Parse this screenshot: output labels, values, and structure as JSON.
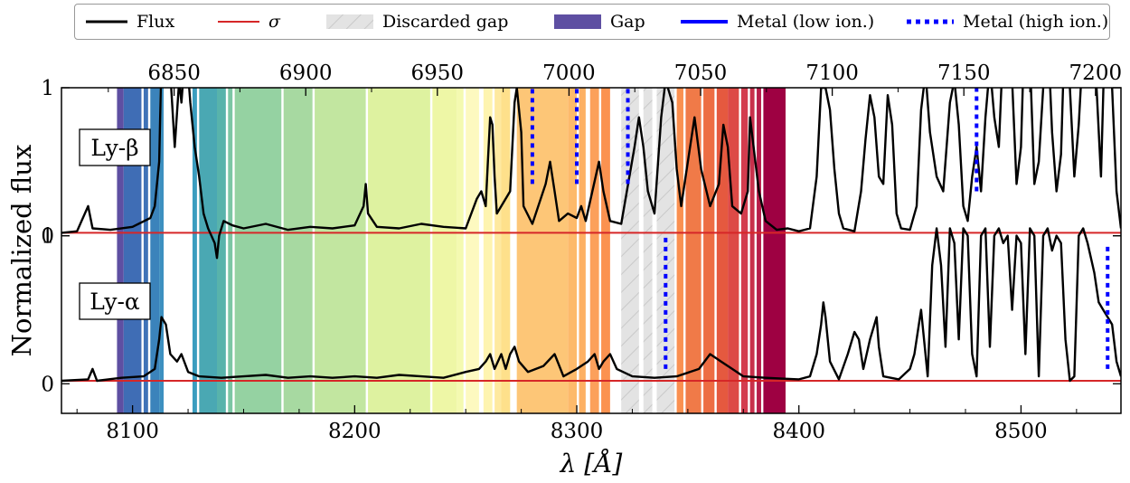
{
  "chart_data": {
    "type": "line",
    "xlabel": "λ [Å]",
    "ylabel": "Normalized flux",
    "xlim": [
      8068,
      8545
    ],
    "bottom_axis_ticks": [
      8100,
      8200,
      8300,
      8400,
      8500
    ],
    "top_axis_ticks": [
      6850,
      6900,
      6950,
      7000,
      7050,
      7100,
      7150,
      7200
    ],
    "top_axis_scale": 0.84373,
    "ylim": [
      -0.2,
      2.0
    ],
    "yticks": [
      0,
      1
    ],
    "panels": [
      {
        "label": "Ly-β",
        "offset": 1.0
      },
      {
        "label": "Ly-α",
        "offset": 0.0
      }
    ],
    "legend": {
      "placement": "top",
      "entries": [
        {
          "label": "Flux",
          "color": "#000000",
          "style": "solid"
        },
        {
          "label": "σ",
          "color": "#d62728",
          "style": "solid"
        },
        {
          "label": "Discarded gap",
          "color": "#d9d9d9",
          "style": "hatched"
        },
        {
          "label": "Gap",
          "color": "#5e4fa2",
          "style": "patch"
        },
        {
          "label": "Metal (low ion.)",
          "color": "#0000ff",
          "style": "solid"
        },
        {
          "label": "Metal (high ion.)",
          "color": "#0000ff",
          "style": "dotted"
        }
      ]
    },
    "gaps": [
      {
        "x0": 8093,
        "x1": 8096,
        "color": "#5e4fa2"
      },
      {
        "x0": 8096,
        "x1": 8104,
        "color": "#3f6db5"
      },
      {
        "x0": 8105,
        "x1": 8107,
        "color": "#3f73b8"
      },
      {
        "x0": 8108,
        "x1": 8112,
        "color": "#3b83bb"
      },
      {
        "x0": 8112,
        "x1": 8114,
        "color": "#3d90c0"
      },
      {
        "x0": 8127,
        "x1": 8129,
        "color": "#3b9dbf"
      },
      {
        "x0": 8130,
        "x1": 8138,
        "color": "#4aa8b3"
      },
      {
        "x0": 8138,
        "x1": 8142,
        "color": "#58b3ab"
      },
      {
        "x0": 8143,
        "x1": 8145,
        "color": "#7cc6a4"
      },
      {
        "x0": 8146,
        "x1": 8167,
        "color": "#95d2a2"
      },
      {
        "x0": 8168,
        "x1": 8181,
        "color": "#a7d9a1"
      },
      {
        "x0": 8182,
        "x1": 8205,
        "color": "#c2e6a0"
      },
      {
        "x0": 8206,
        "x1": 8234,
        "color": "#def2a0"
      },
      {
        "x0": 8235,
        "x1": 8246,
        "color": "#eef7a6"
      },
      {
        "x0": 8246,
        "x1": 8249,
        "color": "#f4fab0"
      },
      {
        "x0": 8250,
        "x1": 8256,
        "color": "#fdf9c0"
      },
      {
        "x0": 8258,
        "x1": 8262,
        "color": "#fef4b0"
      },
      {
        "x0": 8263,
        "x1": 8266,
        "color": "#fee9a0"
      },
      {
        "x0": 8266,
        "x1": 8270,
        "color": "#fee08b"
      },
      {
        "x0": 8273,
        "x1": 8296,
        "color": "#fdc677"
      },
      {
        "x0": 8296,
        "x1": 8300,
        "color": "#fdba6b"
      },
      {
        "x0": 8301,
        "x1": 8304,
        "color": "#fdb063"
      },
      {
        "x0": 8306,
        "x1": 8310,
        "color": "#fca05b"
      },
      {
        "x0": 8311,
        "x1": 8315,
        "color": "#fb9250"
      },
      {
        "x0": 8345,
        "x1": 8348,
        "color": "#fa9050"
      },
      {
        "x0": 8349,
        "x1": 8356,
        "color": "#f07a48"
      },
      {
        "x0": 8357,
        "x1": 8362,
        "color": "#ed6d43"
      },
      {
        "x0": 8363,
        "x1": 8368,
        "color": "#e5593f"
      },
      {
        "x0": 8368,
        "x1": 8373,
        "color": "#dd4a46"
      },
      {
        "x0": 8374,
        "x1": 8377,
        "color": "#d33c4e"
      },
      {
        "x0": 8378,
        "x1": 8380,
        "color": "#c8304b"
      },
      {
        "x0": 8381,
        "x1": 8383,
        "color": "#b81d4a"
      },
      {
        "x0": 8384,
        "x1": 8394,
        "color": "#9e0142"
      }
    ],
    "discarded_gaps": [
      {
        "x0": 8320,
        "x1": 8328
      },
      {
        "x0": 8330,
        "x1": 8334
      },
      {
        "x0": 8336,
        "x1": 8344
      }
    ],
    "metals_high_ion": [
      {
        "panel": "Ly-β",
        "x": 8280,
        "y0": 0.35,
        "y1": 1.1
      },
      {
        "panel": "Ly-β",
        "x": 8300,
        "y0": 0.35,
        "y1": 1.1
      },
      {
        "panel": "Ly-β",
        "x": 8323,
        "y0": 0.35,
        "y1": 1.1
      },
      {
        "panel": "Ly-β",
        "x": 8480,
        "y0": 0.3,
        "y1": 1.1
      },
      {
        "panel": "Ly-α",
        "x": 8340,
        "y0": 0.1,
        "y1": 1.0
      },
      {
        "panel": "Ly-α",
        "x": 8539,
        "y0": 0.1,
        "y1": 0.95
      }
    ],
    "flux_lyb": [
      [
        8068,
        0.02
      ],
      [
        8075,
        0.03
      ],
      [
        8080,
        0.2
      ],
      [
        8082,
        0.05
      ],
      [
        8090,
        0.04
      ],
      [
        8100,
        0.06
      ],
      [
        8108,
        0.12
      ],
      [
        8110,
        0.2
      ],
      [
        8112,
        0.5
      ],
      [
        8113,
        1.2
      ],
      [
        8115,
        1.35
      ],
      [
        8117,
        1.1
      ],
      [
        8119,
        0.6
      ],
      [
        8121,
        1.05
      ],
      [
        8122,
        0.9
      ],
      [
        8124,
        1.3
      ],
      [
        8126,
        0.9
      ],
      [
        8128,
        0.6
      ],
      [
        8130,
        0.4
      ],
      [
        8132,
        0.15
      ],
      [
        8134,
        0.05
      ],
      [
        8137,
        -0.05
      ],
      [
        8138,
        -0.15
      ],
      [
        8139,
        0.0
      ],
      [
        8141,
        0.1
      ],
      [
        8145,
        0.07
      ],
      [
        8150,
        0.05
      ],
      [
        8160,
        0.08
      ],
      [
        8170,
        0.04
      ],
      [
        8180,
        0.06
      ],
      [
        8190,
        0.05
      ],
      [
        8200,
        0.07
      ],
      [
        8204,
        0.2
      ],
      [
        8205,
        0.35
      ],
      [
        8206,
        0.15
      ],
      [
        8210,
        0.06
      ],
      [
        8220,
        0.05
      ],
      [
        8230,
        0.08
      ],
      [
        8240,
        0.06
      ],
      [
        8250,
        0.05
      ],
      [
        8255,
        0.25
      ],
      [
        8257,
        0.3
      ],
      [
        8259,
        0.2
      ],
      [
        8260,
        0.5
      ],
      [
        8261,
        0.8
      ],
      [
        8262,
        0.75
      ],
      [
        8263,
        0.4
      ],
      [
        8264,
        0.15
      ],
      [
        8270,
        0.3
      ],
      [
        8272,
        0.9
      ],
      [
        8273,
        1.0
      ],
      [
        8275,
        0.7
      ],
      [
        8276,
        0.2
      ],
      [
        8280,
        0.08
      ],
      [
        8286,
        0.35
      ],
      [
        8288,
        0.5
      ],
      [
        8290,
        0.3
      ],
      [
        8292,
        0.1
      ],
      [
        8296,
        0.15
      ],
      [
        8300,
        0.12
      ],
      [
        8302,
        0.2
      ],
      [
        8304,
        0.1
      ],
      [
        8310,
        0.5
      ],
      [
        8312,
        0.3
      ],
      [
        8315,
        0.1
      ],
      [
        8320,
        0.08
      ],
      [
        8326,
        0.6
      ],
      [
        8328,
        0.8
      ],
      [
        8330,
        0.6
      ],
      [
        8332,
        0.3
      ],
      [
        8335,
        0.15
      ],
      [
        8338,
        0.8
      ],
      [
        8340,
        1.05
      ],
      [
        8343,
        0.9
      ],
      [
        8345,
        0.45
      ],
      [
        8347,
        0.2
      ],
      [
        8350,
        0.5
      ],
      [
        8353,
        0.8
      ],
      [
        8356,
        0.45
      ],
      [
        8360,
        0.2
      ],
      [
        8364,
        0.35
      ],
      [
        8366,
        0.75
      ],
      [
        8368,
        0.6
      ],
      [
        8370,
        0.2
      ],
      [
        8374,
        0.15
      ],
      [
        8377,
        0.3
      ],
      [
        8378,
        0.8
      ],
      [
        8380,
        0.55
      ],
      [
        8382,
        0.3
      ],
      [
        8385,
        0.1
      ],
      [
        8390,
        0.04
      ],
      [
        8395,
        0.05
      ],
      [
        8400,
        0.03
      ],
      [
        8405,
        0.05
      ],
      [
        8408,
        0.4
      ],
      [
        8410,
        1.0
      ],
      [
        8412,
        1.0
      ],
      [
        8414,
        0.85
      ],
      [
        8416,
        0.45
      ],
      [
        8418,
        0.15
      ],
      [
        8420,
        0.05
      ],
      [
        8425,
        0.03
      ],
      [
        8428,
        0.3
      ],
      [
        8430,
        0.65
      ],
      [
        8432,
        0.95
      ],
      [
        8434,
        0.8
      ],
      [
        8436,
        0.4
      ],
      [
        8438,
        0.35
      ],
      [
        8440,
        0.95
      ],
      [
        8442,
        0.75
      ],
      [
        8444,
        0.15
      ],
      [
        8446,
        0.05
      ],
      [
        8450,
        0.04
      ],
      [
        8453,
        0.2
      ],
      [
        8455,
        0.85
      ],
      [
        8457,
        1.1
      ],
      [
        8459,
        0.7
      ],
      [
        8462,
        0.4
      ],
      [
        8465,
        0.3
      ],
      [
        8468,
        0.9
      ],
      [
        8470,
        1.05
      ],
      [
        8472,
        0.75
      ],
      [
        8474,
        0.2
      ],
      [
        8476,
        0.1
      ],
      [
        8478,
        0.4
      ],
      [
        8480,
        0.6
      ],
      [
        8482,
        0.3
      ],
      [
        8484,
        0.8
      ],
      [
        8486,
        1.15
      ],
      [
        8488,
        0.8
      ],
      [
        8490,
        0.6
      ],
      [
        8492,
        1.3
      ],
      [
        8494,
        1.5
      ],
      [
        8496,
        1.05
      ],
      [
        8498,
        0.35
      ],
      [
        8500,
        0.6
      ],
      [
        8502,
        1.6
      ],
      [
        8504,
        1.2
      ],
      [
        8506,
        0.35
      ],
      [
        8508,
        0.5
      ],
      [
        8510,
        1.0
      ],
      [
        8512,
        1.4
      ],
      [
        8514,
        0.7
      ],
      [
        8516,
        0.3
      ],
      [
        8518,
        0.55
      ],
      [
        8520,
        1.55
      ],
      [
        8522,
        1.0
      ],
      [
        8524,
        0.4
      ],
      [
        8526,
        0.75
      ],
      [
        8528,
        1.3
      ],
      [
        8530,
        1.25
      ],
      [
        8532,
        1.55
      ],
      [
        8534,
        1.0
      ],
      [
        8536,
        0.4
      ],
      [
        8538,
        1.5
      ],
      [
        8540,
        1.45
      ],
      [
        8541,
        1.0
      ],
      [
        8543,
        0.3
      ],
      [
        8545,
        0.05
      ]
    ],
    "flux_lya": [
      [
        8068,
        0.02
      ],
      [
        8080,
        0.03
      ],
      [
        8082,
        0.1
      ],
      [
        8084,
        0.02
      ],
      [
        8095,
        0.04
      ],
      [
        8105,
        0.05
      ],
      [
        8110,
        0.1
      ],
      [
        8112,
        0.3
      ],
      [
        8113,
        0.45
      ],
      [
        8115,
        0.4
      ],
      [
        8117,
        0.2
      ],
      [
        8120,
        0.15
      ],
      [
        8122,
        0.2
      ],
      [
        8125,
        0.08
      ],
      [
        8130,
        0.05
      ],
      [
        8140,
        0.04
      ],
      [
        8150,
        0.05
      ],
      [
        8160,
        0.06
      ],
      [
        8170,
        0.04
      ],
      [
        8180,
        0.05
      ],
      [
        8190,
        0.04
      ],
      [
        8200,
        0.05
      ],
      [
        8210,
        0.04
      ],
      [
        8220,
        0.06
      ],
      [
        8230,
        0.05
      ],
      [
        8240,
        0.04
      ],
      [
        8250,
        0.08
      ],
      [
        8256,
        0.1
      ],
      [
        8259,
        0.15
      ],
      [
        8261,
        0.2
      ],
      [
        8263,
        0.1
      ],
      [
        8266,
        0.2
      ],
      [
        8268,
        0.1
      ],
      [
        8270,
        0.2
      ],
      [
        8272,
        0.25
      ],
      [
        8274,
        0.15
      ],
      [
        8278,
        0.08
      ],
      [
        8285,
        0.12
      ],
      [
        8290,
        0.2
      ],
      [
        8294,
        0.05
      ],
      [
        8300,
        0.1
      ],
      [
        8305,
        0.15
      ],
      [
        8308,
        0.2
      ],
      [
        8310,
        0.1
      ],
      [
        8312,
        0.15
      ],
      [
        8315,
        0.2
      ],
      [
        8318,
        0.1
      ],
      [
        8325,
        0.05
      ],
      [
        8335,
        0.04
      ],
      [
        8345,
        0.05
      ],
      [
        8355,
        0.1
      ],
      [
        8360,
        0.2
      ],
      [
        8365,
        0.15
      ],
      [
        8370,
        0.1
      ],
      [
        8375,
        0.05
      ],
      [
        8385,
        0.04
      ],
      [
        8400,
        0.03
      ],
      [
        8405,
        0.05
      ],
      [
        8408,
        0.2
      ],
      [
        8410,
        0.4
      ],
      [
        8411,
        0.55
      ],
      [
        8412,
        0.45
      ],
      [
        8414,
        0.15
      ],
      [
        8418,
        0.03
      ],
      [
        8422,
        0.2
      ],
      [
        8425,
        0.35
      ],
      [
        8427,
        0.3
      ],
      [
        8429,
        0.1
      ],
      [
        8432,
        0.3
      ],
      [
        8435,
        0.45
      ],
      [
        8436,
        0.25
      ],
      [
        8438,
        0.05
      ],
      [
        8445,
        0.03
      ],
      [
        8450,
        0.1
      ],
      [
        8452,
        0.2
      ],
      [
        8455,
        0.5
      ],
      [
        8458,
        0.05
      ],
      [
        8460,
        0.8
      ],
      [
        8462,
        1.05
      ],
      [
        8464,
        0.8
      ],
      [
        8466,
        0.25
      ],
      [
        8468,
        1.05
      ],
      [
        8470,
        0.95
      ],
      [
        8472,
        0.3
      ],
      [
        8474,
        1.05
      ],
      [
        8476,
        1.0
      ],
      [
        8478,
        0.2
      ],
      [
        8480,
        0.05
      ],
      [
        8482,
        1.0
      ],
      [
        8484,
        1.05
      ],
      [
        8486,
        0.25
      ],
      [
        8488,
        1.0
      ],
      [
        8490,
        1.05
      ],
      [
        8492,
        0.95
      ],
      [
        8494,
        1.0
      ],
      [
        8496,
        0.5
      ],
      [
        8498,
        1.0
      ],
      [
        8500,
        0.95
      ],
      [
        8502,
        0.2
      ],
      [
        8504,
        1.05
      ],
      [
        8506,
        1.0
      ],
      [
        8508,
        0.05
      ],
      [
        8510,
        1.0
      ],
      [
        8512,
        1.05
      ],
      [
        8514,
        0.9
      ],
      [
        8516,
        1.0
      ],
      [
        8518,
        0.95
      ],
      [
        8520,
        0.3
      ],
      [
        8522,
        0.02
      ],
      [
        8524,
        0.05
      ],
      [
        8526,
        1.0
      ],
      [
        8528,
        1.05
      ],
      [
        8530,
        0.95
      ],
      [
        8533,
        0.75
      ],
      [
        8535,
        0.55
      ],
      [
        8537,
        0.5
      ],
      [
        8539,
        0.45
      ],
      [
        8541,
        0.4
      ],
      [
        8543,
        0.15
      ],
      [
        8545,
        0.05
      ]
    ]
  }
}
